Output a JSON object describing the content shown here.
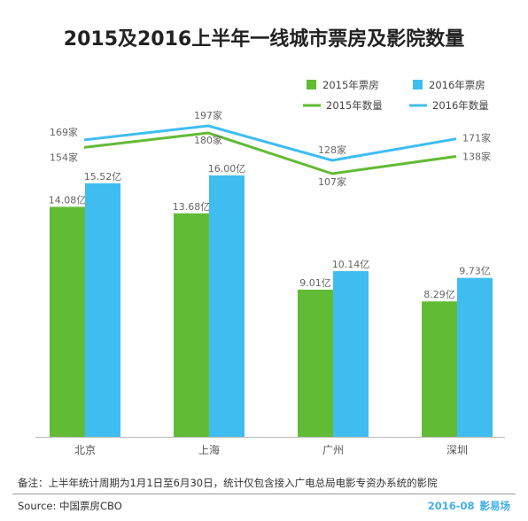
{
  "colors": {
    "green": "#62BB35",
    "blue": "#3FBDF0",
    "label": "#666666",
    "brand": "#3FAEEA",
    "axis": "#bbbbbb"
  },
  "chart_data": {
    "type": "bar",
    "title": "2015及2016上半年一线城市票房及影院数量",
    "categories": [
      "北京",
      "上海",
      "广州",
      "深圳"
    ],
    "series": [
      {
        "name": "2015年票房",
        "kind": "bar",
        "color": "#62BB35",
        "values": [
          14.08,
          13.68,
          9.01,
          8.29
        ],
        "labels": [
          "14.08亿",
          "13.68亿",
          "9.01亿",
          "8.29亿"
        ]
      },
      {
        "name": "2016年票房",
        "kind": "bar",
        "color": "#3FBDF0",
        "values": [
          15.52,
          16.0,
          10.14,
          9.73
        ],
        "labels": [
          "15.52亿",
          "16.00亿",
          "10.14亿",
          "9.73亿"
        ]
      },
      {
        "name": "2015年数量",
        "kind": "line",
        "color": "#62BB35",
        "values": [
          154,
          180,
          107,
          138
        ],
        "labels": [
          "154家",
          "180家",
          "107家",
          "138家"
        ]
      },
      {
        "name": "2016年数量",
        "kind": "line",
        "color": "#3FBDF0",
        "values": [
          169,
          197,
          128,
          171
        ],
        "labels": [
          "169家",
          "197家",
          "128家",
          "171家"
        ]
      }
    ],
    "bar_ylim": [
      0,
      16
    ],
    "line_ylim": [
      107,
      197
    ],
    "grid": false,
    "legend_position": "top-right"
  },
  "footer": {
    "note": "备注：上半年统计周期为1月1日至6月30日，统计仅包含接入广电总局电影专资办系统的影院",
    "source": "Source: 中国票房CBO",
    "date": "2016-08",
    "brand_name": "影易场"
  }
}
